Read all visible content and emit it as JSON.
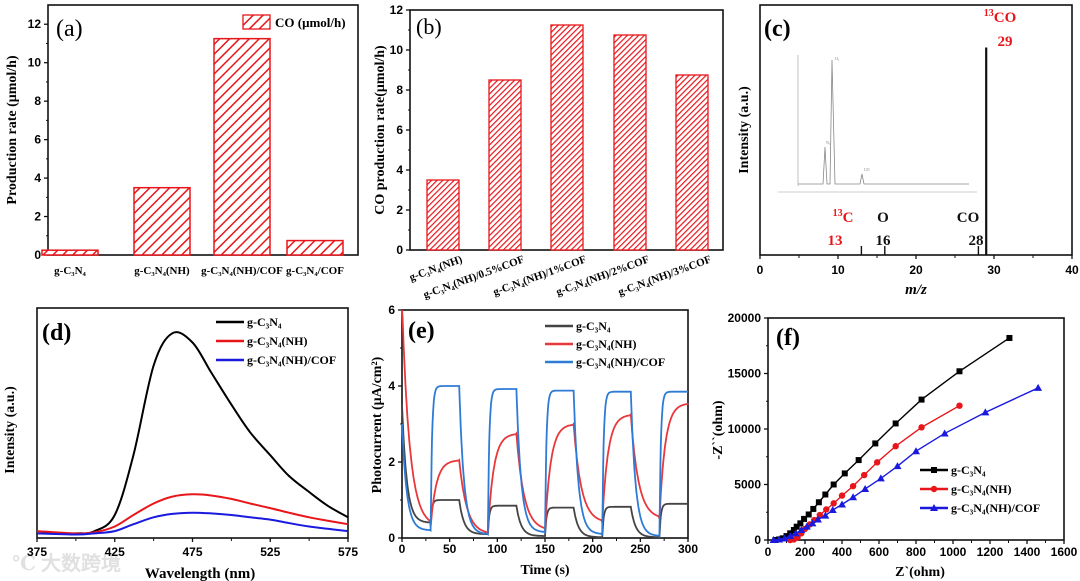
{
  "watermark": "大数跨境",
  "colors": {
    "red": "#e8161b",
    "black": "#111111",
    "blue": "#1a1adf",
    "gray": "#444444",
    "red_e": "#e8383b",
    "blue_e": "#2e7bd6"
  },
  "chart_data": [
    {
      "id": "a",
      "type": "bar",
      "panel_label": "(a)",
      "categories": [
        "g-C₃N₄",
        "g-C₃N₄(NH)",
        "g-C₃N₄(NH)/COF",
        "g-C₃N₄/COF"
      ],
      "values": [
        0.25,
        3.5,
        11.25,
        0.75
      ],
      "legend": "CO (μmol/h)",
      "legend_position": "top-right",
      "xlabel": "",
      "ylabel": "Production rate (μmol/h)",
      "ylim": [
        0,
        13
      ],
      "yticks": [
        0,
        2,
        4,
        6,
        8,
        10,
        12
      ]
    },
    {
      "id": "b",
      "type": "bar",
      "panel_label": "(b)",
      "categories": [
        "g-C₃N₄(NH)",
        "g-C₃N₄(NH)/0.5%COF",
        "g-C₃N₄(NH)/1%COF",
        "g-C₃N₄(NH)/2%COF",
        "g-C₃N₄(NH)/3%COF"
      ],
      "values": [
        3.5,
        8.5,
        11.25,
        10.75,
        8.75
      ],
      "xlabel": "",
      "ylabel": "CO production rate(μmol/h)",
      "ylim": [
        0,
        12
      ],
      "yticks": [
        0,
        2,
        4,
        6,
        8,
        10,
        12
      ]
    },
    {
      "id": "c",
      "type": "bar",
      "panel_label": "(c)",
      "xlabel": "m/z",
      "ylabel": "Intensity (a.u.)",
      "xlim": [
        0,
        40
      ],
      "xticks": [
        0,
        10,
        20,
        30,
        40
      ],
      "ylim": [
        0,
        1
      ],
      "peaks": [
        {
          "x": 13,
          "y": 0.02,
          "label": "C",
          "mass_label": "13",
          "isotope": "13",
          "color": "red"
        },
        {
          "x": 16,
          "y": 0.02,
          "label": "O",
          "mass_label": "16",
          "isotope": "",
          "color": "black"
        },
        {
          "x": 28,
          "y": 0.02,
          "label": "CO",
          "mass_label": "28",
          "isotope": "",
          "color": "black"
        },
        {
          "x": 29,
          "y": 0.83,
          "label": "CO",
          "mass_label": "29",
          "isotope": "13",
          "color": "red"
        }
      ],
      "inset": {
        "type": "line",
        "peak_labels": [
          "N₂",
          "O₂",
          "CO"
        ]
      }
    },
    {
      "id": "d",
      "type": "line",
      "panel_label": "(d)",
      "xlabel": "Wavelength (nm)",
      "ylabel": "Intensity (a.u.)",
      "xlim": [
        375,
        575
      ],
      "xticks": [
        375,
        425,
        475,
        525,
        575
      ],
      "ylim": [
        0,
        100
      ],
      "legend_position": "top-right",
      "x": [
        375,
        400,
        412,
        425,
        437,
        450,
        462,
        475,
        487,
        500,
        512,
        525,
        537,
        550,
        562,
        575
      ],
      "series": [
        {
          "name": "g-C₃N₄",
          "color": "#000000",
          "values": [
            2,
            2,
            3,
            10,
            36,
            75,
            89,
            85,
            72,
            58,
            46,
            36,
            27,
            20,
            14,
            9
          ]
        },
        {
          "name": "g-C₃N₄(NH)",
          "color": "#e8161b",
          "values": [
            3,
            2,
            2.5,
            5,
            10,
            15,
            18,
            19,
            18.5,
            17,
            15,
            13,
            11,
            9,
            7.5,
            6
          ]
        },
        {
          "name": "g-C₃N₄(NH)/COF",
          "color": "#1a1adf",
          "values": [
            2,
            1.5,
            2,
            3,
            6,
            9,
            10.5,
            11,
            10.7,
            10,
            9,
            8,
            6.5,
            5,
            4,
            3
          ]
        }
      ]
    },
    {
      "id": "e",
      "type": "line",
      "panel_label": "(e)",
      "xlabel": "Time (s)",
      "ylabel": "Photocurrent (μA/cm²)",
      "xlim": [
        0,
        300
      ],
      "xticks": [
        0,
        50,
        100,
        150,
        200,
        250,
        300
      ],
      "ylim": [
        0,
        6
      ],
      "yticks": [
        0,
        2,
        4,
        6
      ],
      "legend_position": "top-right",
      "light_on_intervals": [
        [
          30,
          60
        ],
        [
          90,
          120
        ],
        [
          150,
          180
        ],
        [
          210,
          240
        ],
        [
          270,
          300
        ]
      ],
      "series": [
        {
          "name": "g-C₃N₄",
          "color": "#444444",
          "initial": 3.5,
          "on_plateau": [
            1.0,
            0.85,
            0.8,
            0.82,
            0.9
          ],
          "off_minimum": [
            0.4,
            0.1,
            0.05,
            0.02,
            0.02
          ]
        },
        {
          "name": "g-C₃N₄(NH)",
          "color": "#e8383b",
          "initial": 6.2,
          "on_plateau": [
            2.05,
            2.75,
            3.0,
            3.25,
            3.55
          ],
          "off_minimum": [
            0.3,
            0.1,
            0.2,
            0.4,
            0.5
          ]
        },
        {
          "name": "g-C₃N₄(NH)/COF",
          "color": "#2e7bd6",
          "initial": 3.0,
          "on_plateau": [
            4.0,
            3.92,
            3.88,
            3.85,
            3.85
          ],
          "off_minimum": [
            0.2,
            0.1,
            0.15,
            0.1,
            0.05
          ]
        }
      ]
    },
    {
      "id": "f",
      "type": "scatter",
      "panel_label": "(f)",
      "xlabel": "Z`(ohm)",
      "ylabel": "-Z``(ohm)",
      "xlim": [
        0,
        1600
      ],
      "xticks": [
        0,
        200,
        400,
        600,
        800,
        1000,
        1200,
        1400,
        1600
      ],
      "ylim": [
        0,
        20000
      ],
      "yticks": [
        0,
        5000,
        10000,
        15000,
        20000
      ],
      "legend_position": "bottom-right",
      "series": [
        {
          "name": "g-C₃N₄",
          "color": "#000000",
          "marker": "square",
          "points": [
            [
              40,
              0
            ],
            [
              60,
              50
            ],
            [
              80,
              150
            ],
            [
              100,
              350
            ],
            [
              120,
              600
            ],
            [
              140,
              900
            ],
            [
              155,
              1200
            ],
            [
              175,
              1500
            ],
            [
              195,
              1900
            ],
            [
              220,
              2300
            ],
            [
              245,
              2800
            ],
            [
              275,
              3400
            ],
            [
              310,
              4100
            ],
            [
              355,
              5000
            ],
            [
              415,
              6000
            ],
            [
              490,
              7200
            ],
            [
              580,
              8700
            ],
            [
              690,
              10500
            ],
            [
              830,
              12650
            ],
            [
              1035,
              15200
            ],
            [
              1305,
              18200
            ]
          ]
        },
        {
          "name": "g-C₃N₄(NH)",
          "color": "#e8161b",
          "marker": "circle",
          "points": [
            [
              120,
              0
            ],
            [
              140,
              50
            ],
            [
              160,
              250
            ],
            [
              180,
              600
            ],
            [
              200,
              1000
            ],
            [
              225,
              1400
            ],
            [
              250,
              1800
            ],
            [
              280,
              2250
            ],
            [
              315,
              2750
            ],
            [
              355,
              3300
            ],
            [
              400,
              4000
            ],
            [
              460,
              4850
            ],
            [
              520,
              5850
            ],
            [
              590,
              7000
            ],
            [
              690,
              8450
            ],
            [
              830,
              10150
            ],
            [
              1035,
              12100
            ]
          ]
        },
        {
          "name": "g-C₃N₄(NH)/COF",
          "color": "#1a1adf",
          "marker": "triangle",
          "points": [
            [
              30,
              0
            ],
            [
              60,
              50
            ],
            [
              90,
              150
            ],
            [
              120,
              350
            ],
            [
              150,
              600
            ],
            [
              180,
              900
            ],
            [
              210,
              1200
            ],
            [
              240,
              1500
            ],
            [
              270,
              1850
            ],
            [
              310,
              2200
            ],
            [
              350,
              2700
            ],
            [
              400,
              3200
            ],
            [
              460,
              3850
            ],
            [
              525,
              4600
            ],
            [
              610,
              5550
            ],
            [
              700,
              6650
            ],
            [
              800,
              8000
            ],
            [
              955,
              9600
            ],
            [
              1175,
              11500
            ],
            [
              1460,
              13700
            ]
          ]
        }
      ]
    }
  ]
}
